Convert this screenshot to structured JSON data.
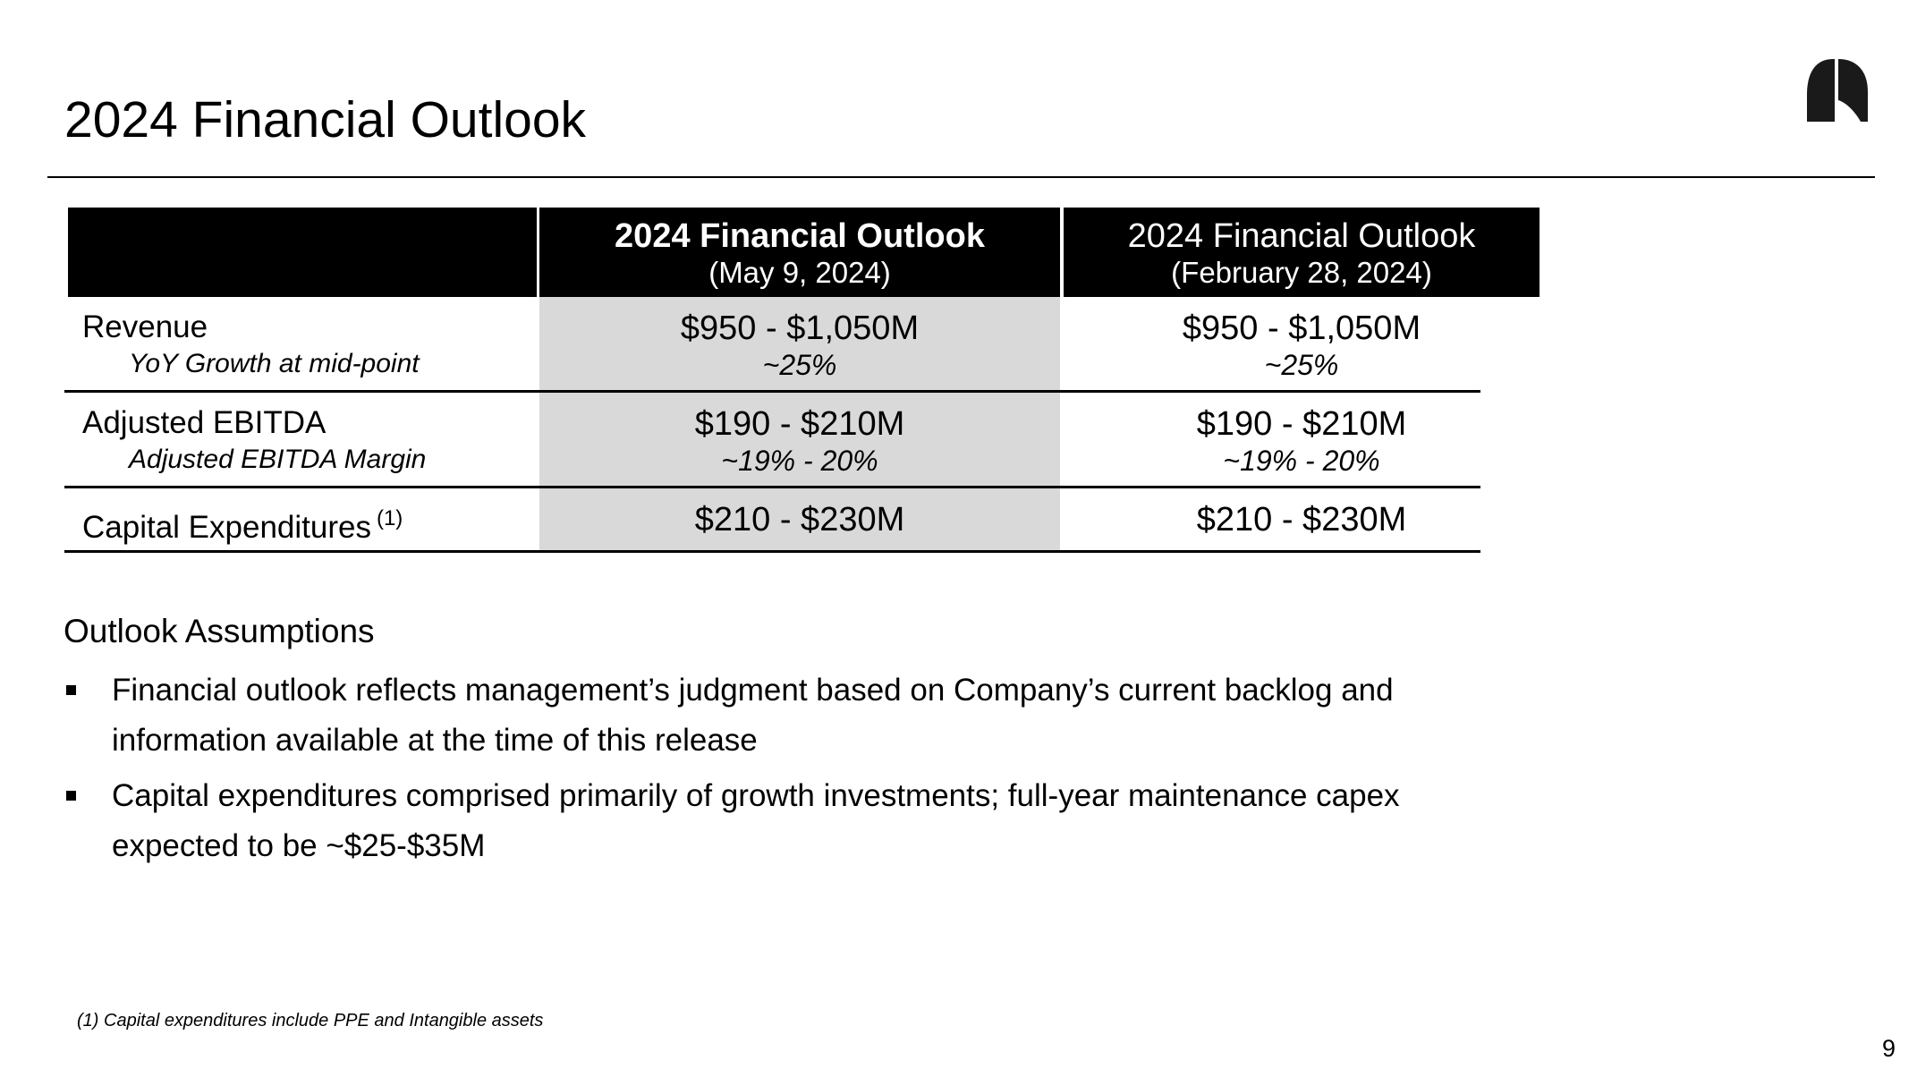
{
  "slide": {
    "title": "2024 Financial Outlook",
    "page_number": "9"
  },
  "table": {
    "headers": [
      {
        "line1": "",
        "line2": ""
      },
      {
        "line1": "2024 Financial Outlook",
        "line2": "(May 9, 2024)"
      },
      {
        "line1": "2024 Financial Outlook",
        "line2": "(February 28, 2024)"
      }
    ],
    "rows": [
      {
        "label": "Revenue",
        "sublabel": "YoY Growth at mid-point",
        "may": {
          "value": "$950 - $1,050M",
          "sub": "~25%"
        },
        "feb": {
          "value": "$950 - $1,050M",
          "sub": "~25%"
        }
      },
      {
        "label": "Adjusted EBITDA",
        "sublabel": "Adjusted EBITDA Margin",
        "may": {
          "value": "$190 - $210M",
          "sub": "~19% - 20%"
        },
        "feb": {
          "value": "$190 - $210M",
          "sub": "~19% - 20%"
        }
      },
      {
        "label": "Capital Expenditures",
        "footnote_ref": "(1)",
        "may": {
          "value": "$210 - $230M"
        },
        "feb": {
          "value": "$210 - $230M"
        }
      }
    ]
  },
  "assumptions": {
    "heading": "Outlook Assumptions",
    "bullets": [
      "Financial outlook reflects management’s judgment based on Company’s current backlog and information available at the time of this release",
      "Capital expenditures comprised primarily of growth investments; full-year maintenance capex expected to be ~$25-$35M"
    ]
  },
  "footnote": "(1) Capital expenditures include PPE and Intangible assets",
  "icons": {
    "logo": "company-logo-icon"
  },
  "colors": {
    "header_bg": "#000000",
    "highlight_column": "#d9d9d9",
    "text": "#000000"
  }
}
